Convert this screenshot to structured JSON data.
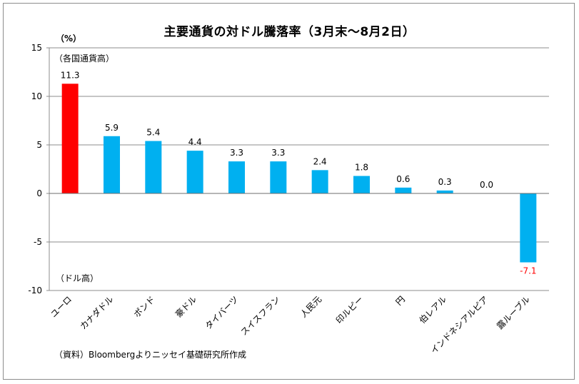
{
  "chart_data": {
    "type": "bar",
    "title": "主要通貨の対ドル騰落率（3月末～8月2日）",
    "unit_label": "（%）",
    "upper_note": "（各国通貨高）",
    "lower_note": "（ドル高）",
    "source": "（資料）Bloombergよりニッセイ基礎研究所作成",
    "categories": [
      "ユーロ",
      "カナダドル",
      "ポンド",
      "豪ドル",
      "タイバーツ",
      "スイスフラン",
      "人民元",
      "印ルピー",
      "円",
      "伯レアル",
      "インドネシアルピア",
      "露ルーブル"
    ],
    "values": [
      11.3,
      5.9,
      5.4,
      4.4,
      3.3,
      3.3,
      2.4,
      1.8,
      0.6,
      0.3,
      0.0,
      -7.1
    ],
    "value_labels": [
      "11.3",
      "5.9",
      "5.4",
      "4.4",
      "3.3",
      "3.3",
      "2.4",
      "1.8",
      "0.6",
      "0.3",
      "0.0",
      "-7.1"
    ],
    "ylim": [
      -10,
      15
    ],
    "yticks": [
      15,
      10,
      5,
      0,
      -5,
      -10
    ],
    "grid": true,
    "colors": {
      "highlight": "#ff0000",
      "bar": "#00b0f0",
      "negative_label": "#ff0000",
      "grid": "#8c8c8c"
    }
  }
}
